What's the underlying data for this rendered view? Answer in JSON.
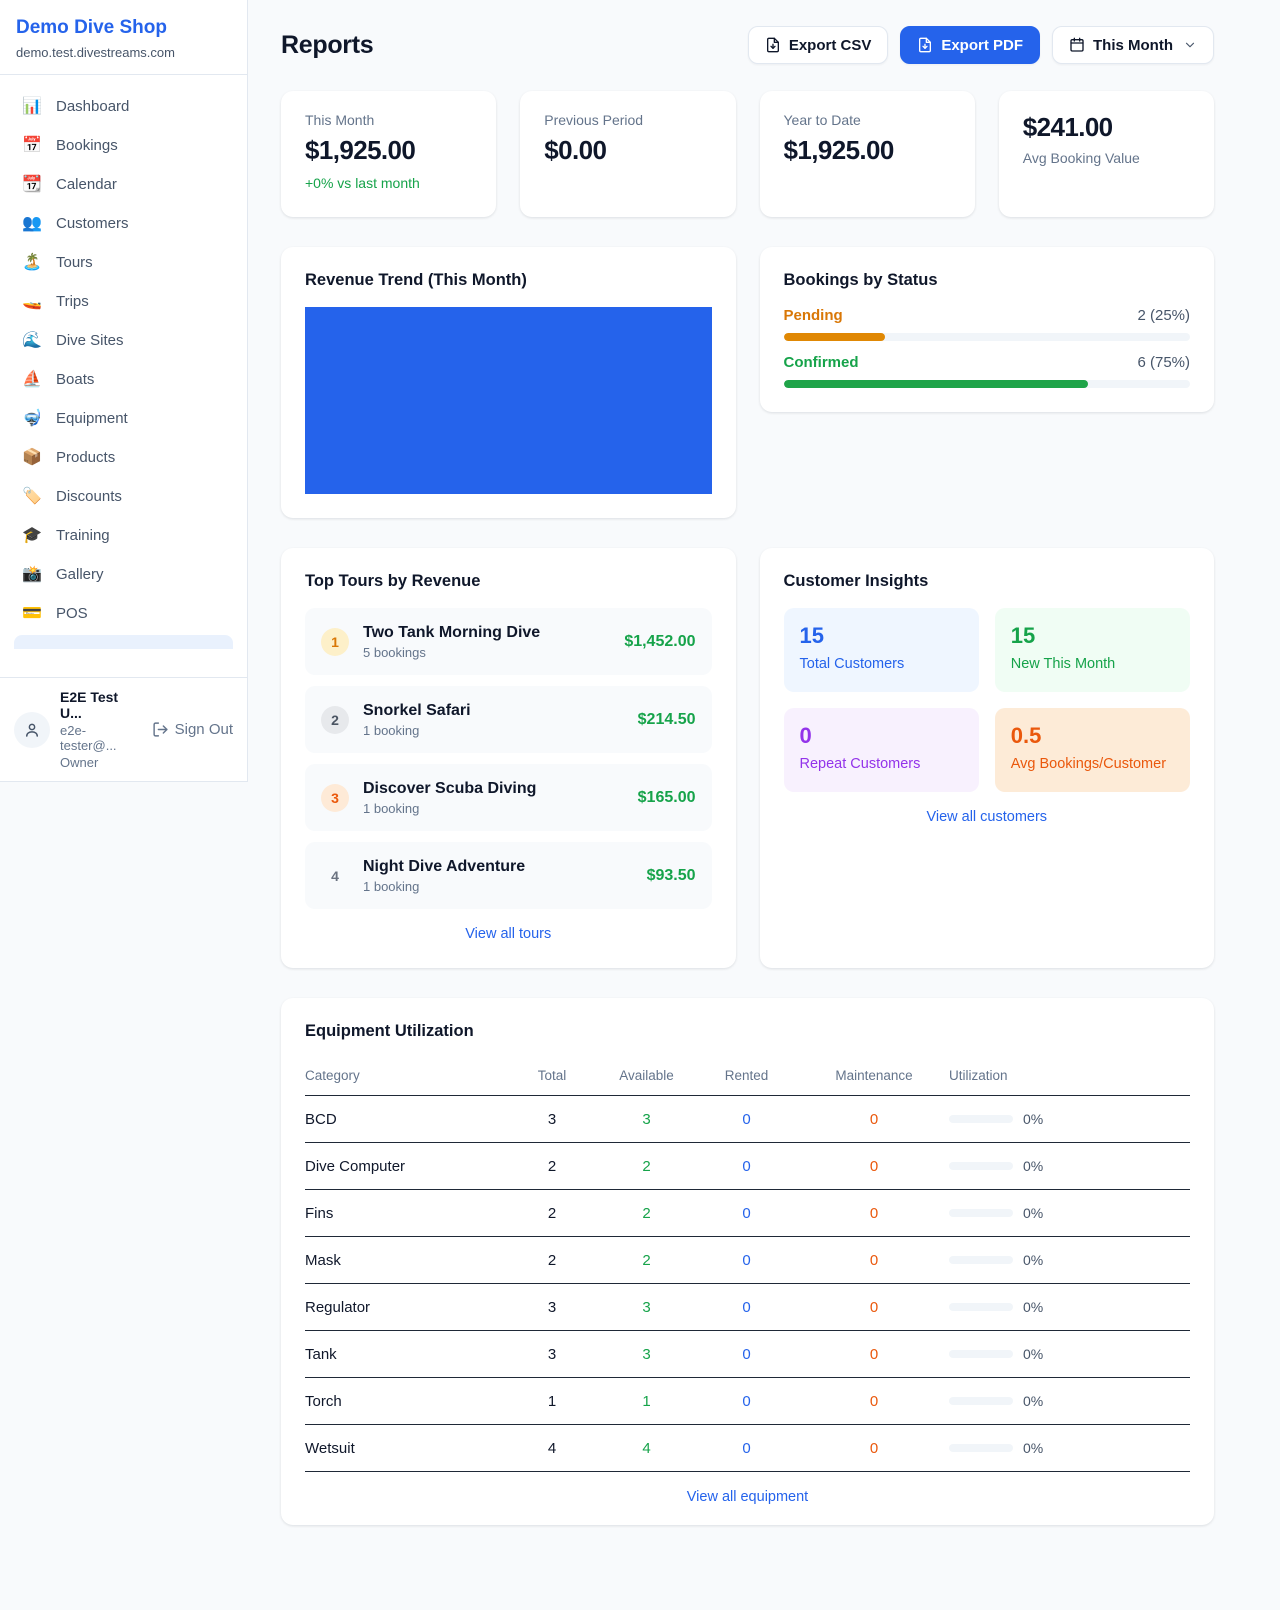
{
  "colors": {
    "accent_blue": "#2563eb",
    "green": "#16a34a",
    "amber": "#d97706",
    "orange": "#ea580c",
    "purple": "#9333ea",
    "chart_fill": "#2563eb"
  },
  "sidebar": {
    "brand": {
      "name": "Demo Dive Shop",
      "domain": "demo.test.divestreams.com"
    },
    "nav": [
      {
        "icon": "📊",
        "label": "Dashboard"
      },
      {
        "icon": "📅",
        "label": "Bookings"
      },
      {
        "icon": "📆",
        "label": "Calendar"
      },
      {
        "icon": "👥",
        "label": "Customers"
      },
      {
        "icon": "🏝️",
        "label": "Tours"
      },
      {
        "icon": "🚤",
        "label": "Trips"
      },
      {
        "icon": "🌊",
        "label": "Dive Sites"
      },
      {
        "icon": "⛵",
        "label": "Boats"
      },
      {
        "icon": "🤿",
        "label": "Equipment"
      },
      {
        "icon": "📦",
        "label": "Products"
      },
      {
        "icon": "🏷️",
        "label": "Discounts"
      },
      {
        "icon": "🎓",
        "label": "Training"
      },
      {
        "icon": "📸",
        "label": "Gallery"
      },
      {
        "icon": "💳",
        "label": "POS"
      }
    ],
    "user": {
      "name": "E2E Test U...",
      "email": "e2e-tester@...",
      "role": "Owner",
      "sign_out_label": "Sign Out"
    }
  },
  "header": {
    "title": "Reports",
    "export_csv_label": "Export CSV",
    "export_pdf_label": "Export PDF",
    "period_label": "This Month"
  },
  "stats": {
    "this_month": {
      "label": "This Month",
      "value": "$1,925.00",
      "delta": "+0% vs last month"
    },
    "previous_period": {
      "label": "Previous Period",
      "value": "$0.00"
    },
    "year_to_date": {
      "label": "Year to Date",
      "value": "$1,925.00"
    },
    "avg_booking": {
      "value": "$241.00",
      "label": "Avg Booking Value"
    }
  },
  "revenue_trend": {
    "title": "Revenue Trend (This Month)"
  },
  "bookings_by_status": {
    "title": "Bookings by Status",
    "rows": [
      {
        "label": "Pending",
        "value": "2 (25%)",
        "pct": 25
      },
      {
        "label": "Confirmed",
        "value": "6 (75%)",
        "pct": 75
      }
    ]
  },
  "top_tours": {
    "title": "Top Tours by Revenue",
    "rows": [
      {
        "rank": "1",
        "name": "Two Tank Morning Dive",
        "bookings": "5 bookings",
        "revenue": "$1,452.00"
      },
      {
        "rank": "2",
        "name": "Snorkel Safari",
        "bookings": "1 booking",
        "revenue": "$214.50"
      },
      {
        "rank": "3",
        "name": "Discover Scuba Diving",
        "bookings": "1 booking",
        "revenue": "$165.00"
      },
      {
        "rank": "4",
        "name": "Night Dive Adventure",
        "bookings": "1 booking",
        "revenue": "$93.50"
      }
    ],
    "link": "View all tours"
  },
  "customer_insights": {
    "title": "Customer Insights",
    "tiles": [
      {
        "value": "15",
        "label": "Total Customers"
      },
      {
        "value": "15",
        "label": "New This Month"
      },
      {
        "value": "0",
        "label": "Repeat Customers"
      },
      {
        "value": "0.5",
        "label": "Avg Bookings/Customer"
      }
    ],
    "link": "View all customers"
  },
  "equipment": {
    "title": "Equipment Utilization",
    "columns": [
      "Category",
      "Total",
      "Available",
      "Rented",
      "Maintenance",
      "Utilization"
    ],
    "rows": [
      {
        "category": "BCD",
        "total": "3",
        "available": "3",
        "rented": "0",
        "maintenance": "0",
        "utilization": "0%"
      },
      {
        "category": "Dive Computer",
        "total": "2",
        "available": "2",
        "rented": "0",
        "maintenance": "0",
        "utilization": "0%"
      },
      {
        "category": "Fins",
        "total": "2",
        "available": "2",
        "rented": "0",
        "maintenance": "0",
        "utilization": "0%"
      },
      {
        "category": "Mask",
        "total": "2",
        "available": "2",
        "rented": "0",
        "maintenance": "0",
        "utilization": "0%"
      },
      {
        "category": "Regulator",
        "total": "3",
        "available": "3",
        "rented": "0",
        "maintenance": "0",
        "utilization": "0%"
      },
      {
        "category": "Tank",
        "total": "3",
        "available": "3",
        "rented": "0",
        "maintenance": "0",
        "utilization": "0%"
      },
      {
        "category": "Torch",
        "total": "1",
        "available": "1",
        "rented": "0",
        "maintenance": "0",
        "utilization": "0%"
      },
      {
        "category": "Wetsuit",
        "total": "4",
        "available": "4",
        "rented": "0",
        "maintenance": "0",
        "utilization": "0%"
      }
    ],
    "link": "View all equipment"
  }
}
